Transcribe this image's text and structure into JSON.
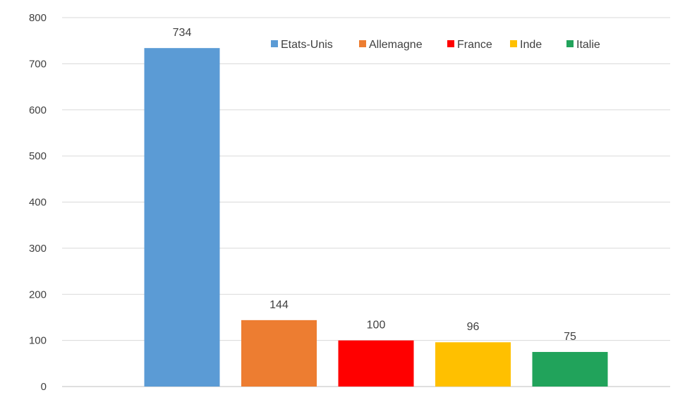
{
  "chart_data": {
    "type": "bar",
    "categories": [
      "Etats-Unis",
      "Allemagne",
      "France",
      "Inde",
      "Italie"
    ],
    "values": [
      734,
      144,
      100,
      96,
      75
    ],
    "value_labels": [
      "734",
      "144",
      "100",
      "96",
      "75"
    ],
    "colors": [
      "#5b9bd5",
      "#ed7d31",
      "#ff0000",
      "#ffc000",
      "#21a35b"
    ],
    "ylim": [
      0,
      800
    ],
    "yticks": [
      0,
      100,
      200,
      300,
      400,
      500,
      600,
      700,
      800
    ],
    "ytick_labels": [
      "0",
      "100",
      "200",
      "300",
      "400",
      "500",
      "600",
      "700",
      "800"
    ],
    "grid": true,
    "legend": {
      "placement": "top-right",
      "entries": [
        "Etats-Unis",
        "Allemagne",
        "France",
        "Inde",
        "Italie"
      ]
    },
    "title": "",
    "xlabel": "",
    "ylabel": ""
  }
}
